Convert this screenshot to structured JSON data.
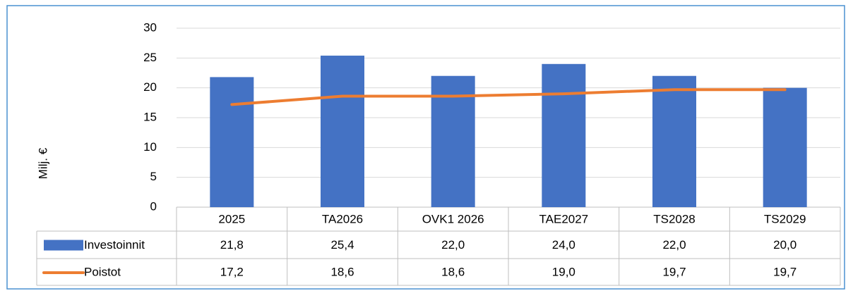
{
  "chart_data": {
    "type": "bar",
    "y_label": "Milj. €",
    "categories": [
      "2025",
      "TA2026",
      "OVK1 2026",
      "TAE2027",
      "TS2028",
      "TS2029"
    ],
    "series": [
      {
        "name": "Investoinnit",
        "type": "bar",
        "color": "#4472c4",
        "values": [
          21.8,
          25.4,
          22.0,
          24.0,
          22.0,
          20.0
        ],
        "value_labels": [
          "21,8",
          "25,4",
          "22,0",
          "24,0",
          "22,0",
          "20,0"
        ]
      },
      {
        "name": "Poistot",
        "type": "line",
        "color": "#ed7d31",
        "values": [
          17.2,
          18.6,
          18.6,
          19.0,
          19.7,
          19.7
        ],
        "value_labels": [
          "17,2",
          "18,6",
          "18,6",
          "19,0",
          "19,7",
          "19,7"
        ]
      }
    ],
    "ylim": [
      0,
      30
    ],
    "yticks": [
      0,
      5,
      10,
      15,
      20,
      25,
      30
    ],
    "grid": true,
    "data_table": true
  }
}
